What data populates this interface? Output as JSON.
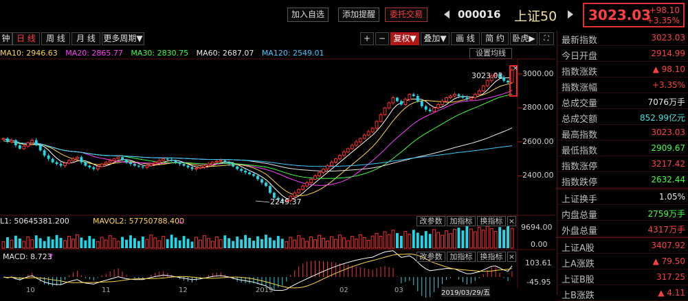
{
  "top": {
    "buttons": [
      "加入自选",
      "添加提醒",
      "委托交易"
    ],
    "code": "000016",
    "name": "上证50",
    "price": "3023.03",
    "change": "+98.10",
    "change_pct": "+3.35%"
  },
  "toolbar": {
    "periods": [
      "钟",
      "日 线",
      "周 线",
      "月 线",
      "更多周期▼"
    ],
    "tools": [
      "+",
      "−",
      "复权▼",
      "叠加▼",
      "画 线",
      "简 约",
      "卧虎▶"
    ]
  },
  "ma_legend": [
    {
      "label": "MA10: 2946.63",
      "color": "#ffd84a"
    },
    {
      "label": "MA20: 2865.77",
      "color": "#ff40ff"
    },
    {
      "label": "MA30: 2830.75",
      "color": "#40ff40"
    },
    {
      "label": "MA60: 2687.07",
      "color": "#e8e8e8"
    },
    {
      "label": "MA120: 2549.01",
      "color": "#40c8ff"
    }
  ],
  "settings_label": "设置均线",
  "price_axis": [
    "3000.00",
    "2800.00",
    "2600.00",
    "2400.00"
  ],
  "annotations": {
    "high": "3023.03",
    "low": "2249.37"
  },
  "volume": {
    "vol_label": "L1: 50645381.200",
    "mavol_label": "MAVOL2: 57750788.400",
    "axis_top": "9694.00",
    "axis_bottom": "0.00",
    "buttons": [
      "改参数",
      "加指标",
      "换指标"
    ]
  },
  "macd": {
    "label": "MACD: 8.723",
    "axis_top": "103.61",
    "axis_bottom": "-45.95",
    "buttons": [
      "改参数",
      "加指标",
      "换指标"
    ]
  },
  "date_axis": [
    "10",
    "11",
    "12",
    "2019",
    "02",
    "03",
    "2019/03/29/五"
  ],
  "info": [
    {
      "label": "最新指数",
      "value": "3023.03",
      "color": "#ff4040"
    },
    {
      "label": "今日开盘",
      "value": "2914.99",
      "color": "#ff4040"
    },
    {
      "label": "指数涨跌",
      "value": "▲ 98.10",
      "color": "#ff4040"
    },
    {
      "label": "指数涨幅",
      "value": "+3.35%",
      "color": "#ff4040"
    },
    {
      "label": "总成交量",
      "value": "7076万手",
      "color": "#e8e8e8"
    },
    {
      "label": "总成交额",
      "value": "852.99亿元",
      "color": "#40e0e0"
    },
    {
      "label": "最高指数",
      "value": "3023.03",
      "color": "#ff4040"
    },
    {
      "label": "最低指数",
      "value": "2909.67",
      "color": "#40ff40"
    },
    {
      "label": "指数涨停",
      "value": "3217.42",
      "color": "#ff4040"
    },
    {
      "label": "指数跌停",
      "value": "2632.44",
      "color": "#40ff40"
    },
    {
      "label": "上证换手",
      "value": "1.05%",
      "color": "#e8e8e8"
    },
    {
      "label": "内盘总量",
      "value": "2759万手",
      "color": "#40ff40"
    },
    {
      "label": "外盘总量",
      "value": "4317万手",
      "color": "#ff4040"
    },
    {
      "label": "上证A股",
      "value": "3407.92",
      "color": "#ff4040"
    },
    {
      "label": "上A涨跌",
      "value": "▲ 79.50",
      "color": "#ff4040"
    },
    {
      "label": "上证B股",
      "value": "317.25",
      "color": "#ff4040"
    },
    {
      "label": "上B涨跌",
      "value": "▲ 4.11",
      "color": "#ff4040"
    }
  ],
  "chart_data": {
    "type": "candlestick",
    "price_range": [
      2200,
      3080
    ],
    "closes": [
      2620,
      2600,
      2610,
      2580,
      2560,
      2575,
      2595,
      2610,
      2580,
      2550,
      2520,
      2500,
      2480,
      2470,
      2460,
      2475,
      2490,
      2500,
      2510,
      2480,
      2460,
      2450,
      2440,
      2455,
      2470,
      2480,
      2490,
      2500,
      2510,
      2495,
      2480,
      2470,
      2460,
      2455,
      2450,
      2460,
      2470,
      2480,
      2490,
      2500,
      2495,
      2490,
      2480,
      2470,
      2460,
      2450,
      2440,
      2445,
      2450,
      2460,
      2470,
      2480,
      2485,
      2490,
      2480,
      2470,
      2455,
      2440,
      2430,
      2420,
      2410,
      2400,
      2380,
      2360,
      2340,
      2300,
      2270,
      2260,
      2250,
      2255,
      2280,
      2300,
      2320,
      2340,
      2360,
      2380,
      2400,
      2420,
      2440,
      2460,
      2480,
      2500,
      2520,
      2540,
      2560,
      2580,
      2600,
      2620,
      2640,
      2660,
      2680,
      2720,
      2760,
      2800,
      2830,
      2860,
      2840,
      2820,
      2850,
      2880,
      2870,
      2840,
      2810,
      2790,
      2780,
      2800,
      2820,
      2840,
      2860,
      2870,
      2880,
      2870,
      2860,
      2850,
      2860,
      2880,
      2900,
      2930,
      2960,
      2990,
      3000,
      2980,
      2960,
      2950,
      3023
    ],
    "ma10": [
      2605,
      2602,
      2600,
      2595,
      2590,
      2585,
      2583,
      2585,
      2588,
      2586,
      2580,
      2570,
      2560,
      2545,
      2530,
      2518,
      2508,
      2500,
      2492,
      2486,
      2480,
      2474,
      2470,
      2466,
      2466,
      2468,
      2470,
      2474,
      2478,
      2482,
      2484,
      2483,
      2481,
      2478,
      2474,
      2470,
      2467,
      2466,
      2466,
      2468,
      2472,
      2476,
      2478,
      2478,
      2476,
      2472,
      2468,
      2464,
      2460,
      2458,
      2456,
      2456,
      2458,
      2460,
      2462,
      2464,
      2466,
      2466,
      2464,
      2460,
      2454,
      2446,
      2436,
      2424,
      2410,
      2390,
      2368,
      2346,
      2326,
      2308,
      2296,
      2288,
      2284,
      2284,
      2288,
      2296,
      2306,
      2318,
      2332,
      2348,
      2366,
      2386,
      2406,
      2426,
      2446,
      2466,
      2486,
      2506,
      2526,
      2548,
      2572,
      2598,
      2628,
      2660,
      2692,
      2724,
      2752,
      2778,
      2800,
      2818,
      2830,
      2838,
      2842,
      2844,
      2842,
      2840,
      2838,
      2836,
      2834,
      2834,
      2836,
      2840,
      2846,
      2852,
      2858,
      2864,
      2870,
      2878,
      2888,
      2900,
      2914,
      2926,
      2934,
      2940,
      2946
    ]
  }
}
